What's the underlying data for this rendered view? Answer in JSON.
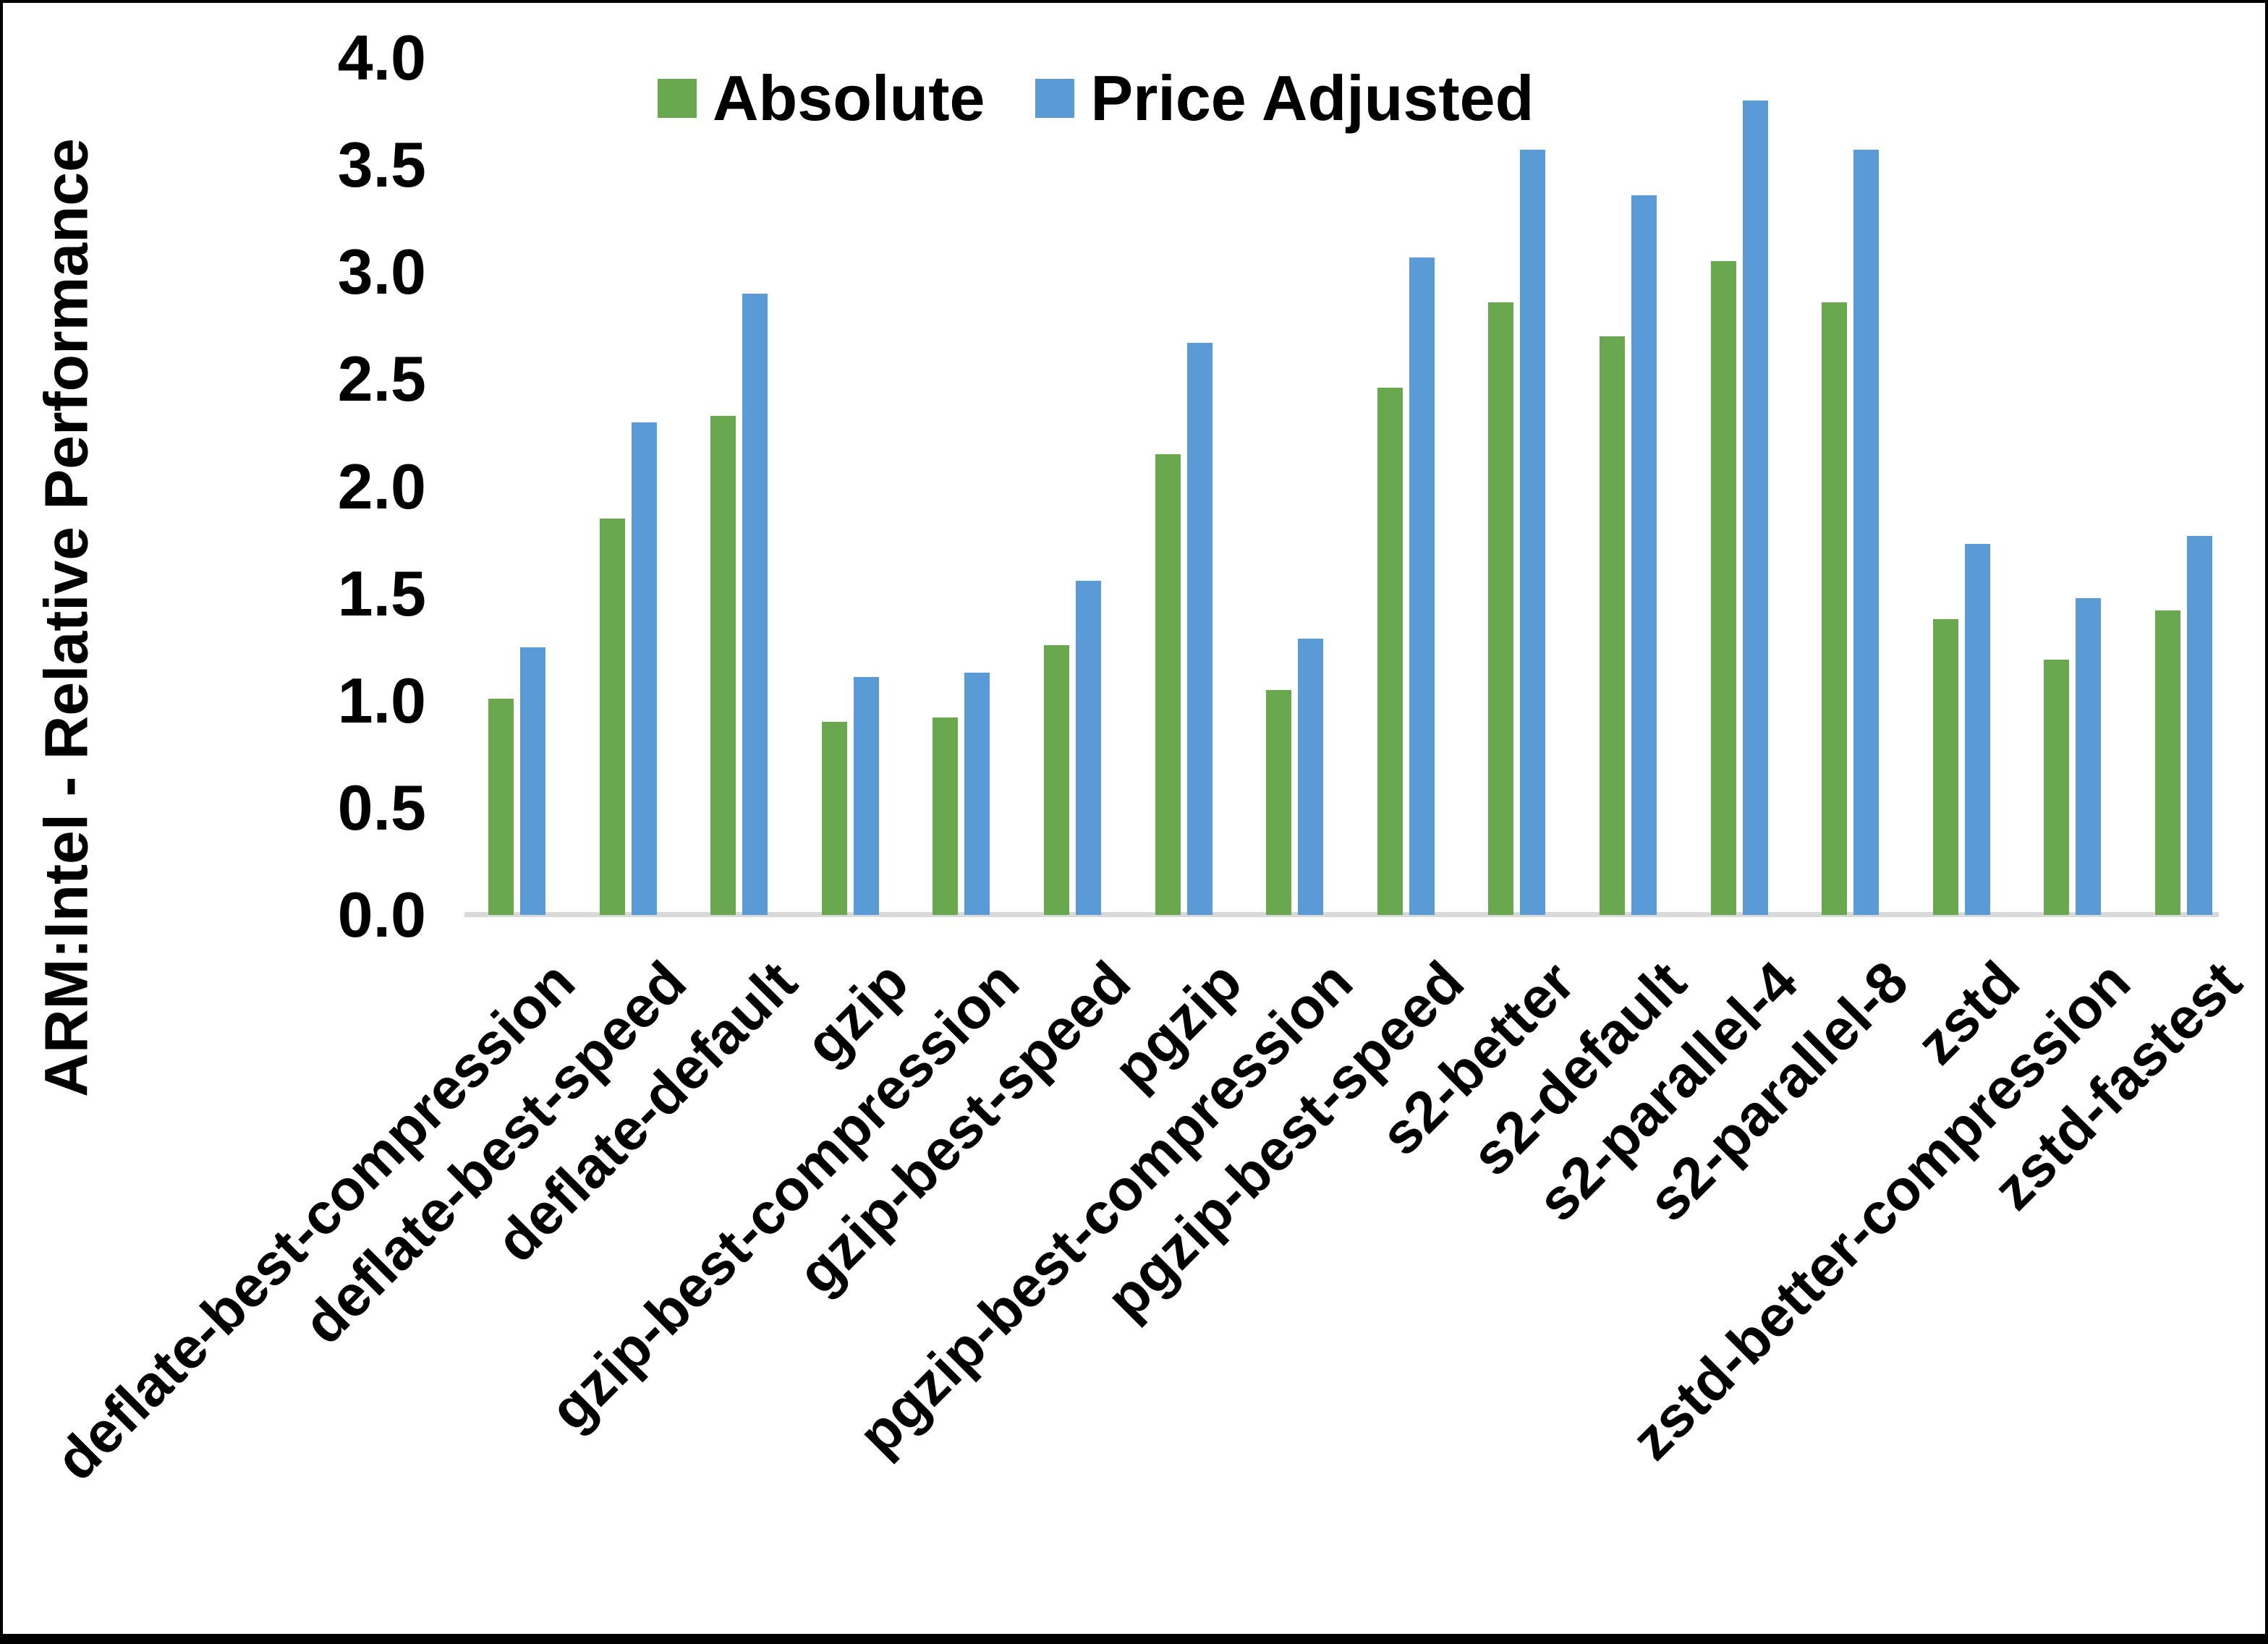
{
  "chart_data": {
    "type": "bar",
    "title": "",
    "ylabel": "ARM:Intel - Relative Performance",
    "xlabel": "",
    "ylim": [
      0.0,
      4.0
    ],
    "ytick_step": 0.5,
    "ytick_labels": [
      "0.0",
      "0.5",
      "1.0",
      "1.5",
      "2.0",
      "2.5",
      "3.0",
      "3.5",
      "4.0"
    ],
    "grid": false,
    "legend_position": "top-center",
    "background_color": "#ffffff",
    "axis_line_color": "#d9d9d9",
    "categories": [
      "deflate-best-compression",
      "deflate-best-speed",
      "deflate-default",
      "gzip",
      "gzip-best-compression",
      "gzip-best-speed",
      "pgzip",
      "pgzip-best-compression",
      "pgzip-best-speed",
      "s2-better",
      "s2-default",
      "s2-parallel-4",
      "s2-parallel-8",
      "zstd",
      "zstd-better-compression",
      "zstd-fastest"
    ],
    "series": [
      {
        "name": "Absolute",
        "color": "#6aa84f",
        "values": [
          1.01,
          1.85,
          2.33,
          0.9,
          0.92,
          1.26,
          2.15,
          1.05,
          2.46,
          2.86,
          2.7,
          3.05,
          2.86,
          1.38,
          1.19,
          1.42
        ]
      },
      {
        "name": "Price Adjusted",
        "color": "#5b9bd5",
        "values": [
          1.25,
          2.3,
          2.9,
          1.11,
          1.13,
          1.56,
          2.67,
          1.29,
          3.07,
          3.57,
          3.36,
          3.8,
          3.57,
          1.73,
          1.48,
          1.77
        ]
      }
    ]
  }
}
